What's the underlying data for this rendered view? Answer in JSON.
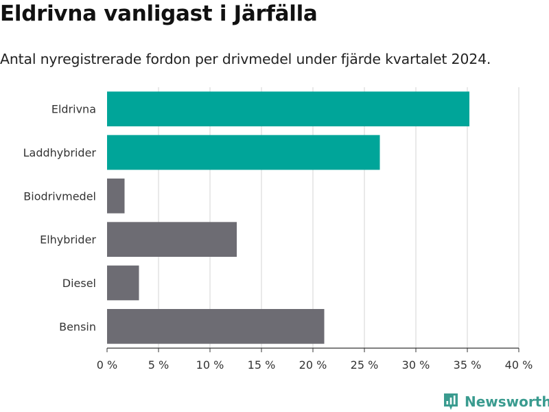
{
  "header": {
    "title": "Eldrivna vanligast i Järfälla",
    "subtitle": "Antal nyregistrerade fordon per drivmedel under fjärde kvartalet 2024."
  },
  "brand": {
    "name": "Newsworthy",
    "color": "#3a9b8f"
  },
  "colors": {
    "highlight": "#00a599",
    "default": "#6d6c73",
    "grid": "#dddddd",
    "axis": "#333333"
  },
  "chart_data": {
    "type": "bar",
    "orientation": "horizontal",
    "title": "Eldrivna vanligast i Järfälla",
    "subtitle": "Antal nyregistrerade fordon per drivmedel under fjärde kvartalet 2024.",
    "categories": [
      "Eldrivna",
      "Laddhybrider",
      "Biodrivmedel",
      "Elhybrider",
      "Diesel",
      "Bensin"
    ],
    "values": [
      35.2,
      26.5,
      1.7,
      12.6,
      3.1,
      21.1
    ],
    "highlighted": [
      true,
      true,
      false,
      false,
      false,
      false
    ],
    "xlabel": "",
    "ylabel": "",
    "xlim": [
      0,
      40
    ],
    "xticks": [
      0,
      5,
      10,
      15,
      20,
      25,
      30,
      35,
      40
    ],
    "xtick_labels": [
      "0 %",
      "5 %",
      "10 %",
      "15 %",
      "20 %",
      "25 %",
      "30 %",
      "35 %",
      "40 %"
    ],
    "grid": true,
    "legend": "none"
  }
}
